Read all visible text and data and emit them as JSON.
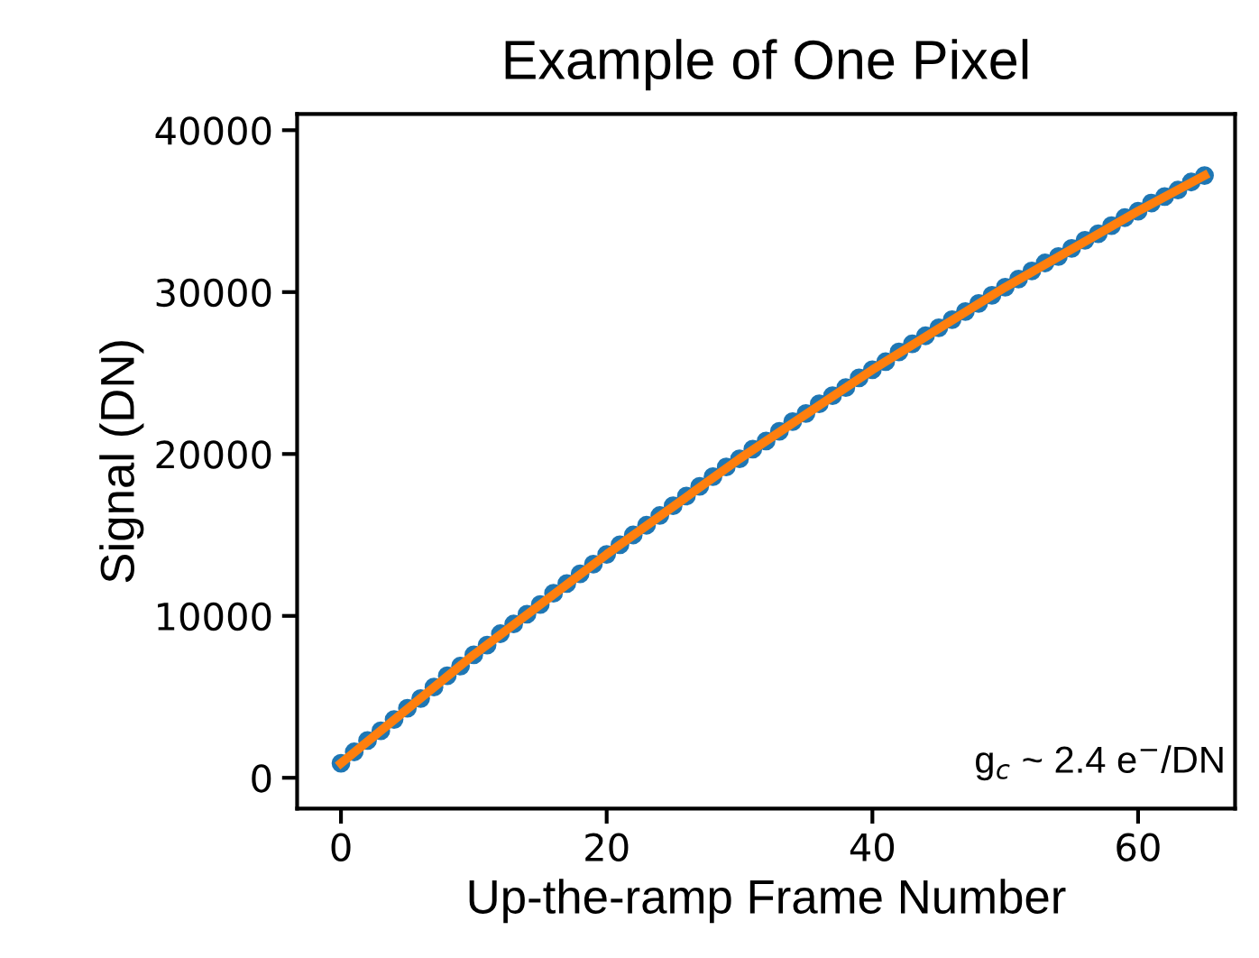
{
  "chart_data": {
    "type": "scatter",
    "title": "Example of One Pixel",
    "xlabel": "Up-the-ramp Frame Number",
    "ylabel": "Signal (DN)",
    "xlim": [
      -3.3,
      67.3
    ],
    "ylim": [
      -1900,
      41000
    ],
    "xticks": [
      0,
      20,
      40,
      60
    ],
    "yticks": [
      0,
      10000,
      20000,
      30000,
      40000
    ],
    "grid": false,
    "series": [
      {
        "marker": "circle",
        "color": "#1f77b4",
        "x": [
          0,
          1,
          2,
          3,
          4,
          5,
          6,
          7,
          8,
          9,
          10,
          11,
          12,
          13,
          14,
          15,
          16,
          17,
          18,
          19,
          20,
          21,
          22,
          23,
          24,
          25,
          26,
          27,
          28,
          29,
          30,
          31,
          32,
          33,
          34,
          35,
          36,
          37,
          38,
          39,
          40,
          41,
          42,
          43,
          44,
          45,
          46,
          47,
          48,
          49,
          50,
          51,
          52,
          53,
          54,
          55,
          56,
          57,
          58,
          59,
          60,
          61,
          62,
          63,
          64,
          65
        ],
        "values": [
          900,
          1600,
          2300,
          2900,
          3600,
          4300,
          4900,
          5600,
          6300,
          6900,
          7600,
          8200,
          8900,
          9500,
          10100,
          10700,
          11400,
          12000,
          12600,
          13200,
          13800,
          14400,
          15000,
          15600,
          16200,
          16800,
          17400,
          18000,
          18600,
          19200,
          19700,
          20300,
          20800,
          21400,
          22000,
          22500,
          23100,
          23600,
          24100,
          24700,
          25200,
          25700,
          26300,
          26800,
          27300,
          27800,
          28300,
          28800,
          29300,
          29800,
          30300,
          30800,
          31300,
          31800,
          32200,
          32700,
          33200,
          33600,
          34100,
          34600,
          35000,
          35500,
          35900,
          36300,
          36800,
          37200
        ]
      },
      {
        "type": "line",
        "color": "#ff7f0e",
        "x": [
          0,
          10,
          20,
          30,
          40,
          50,
          60,
          65
        ],
        "values": [
          900,
          7600,
          13800,
          19700,
          25200,
          30300,
          35000,
          37200
        ]
      }
    ],
    "annotations": [
      "g$_{c}$ ~ 2.4 e$^{−}$/DN"
    ]
  }
}
